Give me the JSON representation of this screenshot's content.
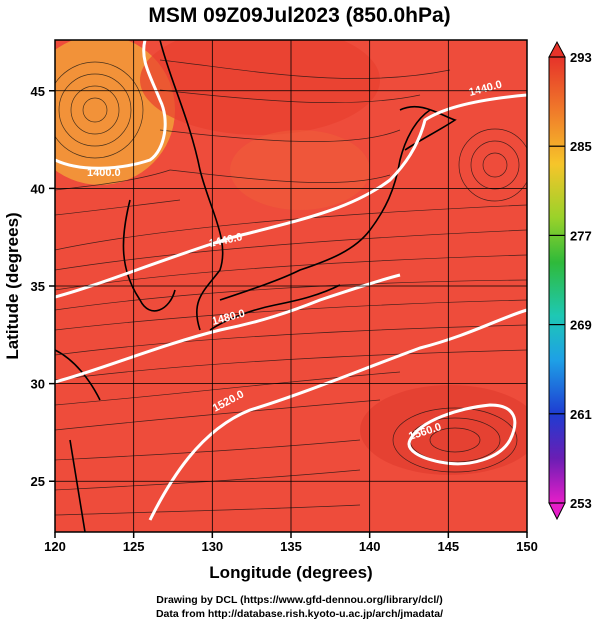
{
  "title": "MSM 09Z09Jul2023 (850.0hPa)",
  "axes": {
    "xlabel": "Longitude (degrees)",
    "ylabel": "Latitude  (degrees)",
    "x_ticks": [
      "120",
      "125",
      "130",
      "135",
      "140",
      "145",
      "150"
    ],
    "y_ticks": [
      "45",
      "40",
      "35",
      "30",
      "25"
    ],
    "x_range": [
      120,
      150
    ],
    "y_range": [
      22.4,
      47.6
    ]
  },
  "colorbar": {
    "ticks": [
      "293",
      "285",
      "277",
      "269",
      "261",
      "253"
    ],
    "min": 253,
    "max": 293
  },
  "contour_labels": [
    "1440.0",
    "1400.0",
    "1440.0",
    "1480.0",
    "1520.0",
    "1560.0"
  ],
  "credits": {
    "line1": "Drawing by DCL (https://www.gfd-dennou.org/library/dcl/)",
    "line2": "Data from http://database.rish.kyoto-u.ac.jp/arch/jmadata/"
  },
  "colors": {
    "field": "#ef4a3a",
    "field_warm": "#f29a3a",
    "contour": "#ffffff",
    "coast": "#000000"
  }
}
